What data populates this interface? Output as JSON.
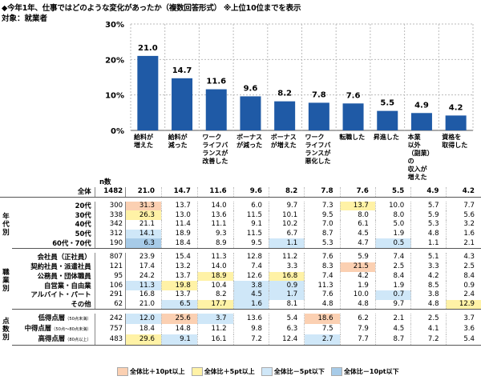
{
  "header": {
    "title": "◆今年1年、仕事ではどのような変化があったか（複数回答形式） ※上位10位までを表示",
    "subject": "対象：就業者"
  },
  "chart_data": {
    "type": "bar",
    "title": "今年1年、仕事ではどのような変化があったか（複数回答形式）",
    "ylabel": "%",
    "ylim": [
      0,
      30
    ],
    "yticks": [
      "0%",
      "10%",
      "20%",
      "30%"
    ],
    "categories": [
      "給料が\n増えた",
      "給料が\n減った",
      "ワーク\nライフバ\nランスが\n改善した",
      "ボーナス\nが減った",
      "ボーナス\nが増えた",
      "ワーク\nライフバ\nランスが\n悪化した",
      "転職した",
      "昇進した",
      "本業\n以外\n（副業）の\n収入が\n増えた",
      "資格を\n取得した"
    ],
    "values": [
      21.0,
      14.7,
      11.6,
      9.6,
      8.2,
      7.8,
      7.6,
      5.5,
      4.9,
      4.2
    ],
    "bar_color": "#1f5aa6"
  },
  "table": {
    "n_header": "n数",
    "rows": [
      {
        "group": "",
        "label": "全体",
        "n": "1482",
        "values": [
          "21.0",
          "14.7",
          "11.6",
          "9.6",
          "8.2",
          "7.8",
          "7.6",
          "5.5",
          "4.9",
          "4.2"
        ],
        "hl": [
          0,
          0,
          0,
          0,
          0,
          0,
          0,
          0,
          0,
          0
        ]
      },
      {
        "group": "年代別",
        "label": "20代",
        "n": "300",
        "values": [
          "31.3",
          "13.7",
          "14.0",
          "6.0",
          "9.7",
          "7.3",
          "13.7",
          "10.0",
          "5.7",
          "7.7"
        ],
        "hl": [
          1,
          0,
          0,
          0,
          0,
          0,
          2,
          0,
          0,
          0
        ]
      },
      {
        "group": "",
        "label": "30代",
        "n": "338",
        "values": [
          "26.3",
          "13.0",
          "13.6",
          "11.5",
          "10.1",
          "9.5",
          "8.0",
          "8.0",
          "5.9",
          "5.6"
        ],
        "hl": [
          2,
          0,
          0,
          0,
          0,
          0,
          0,
          0,
          0,
          0
        ]
      },
      {
        "group": "",
        "label": "40代",
        "n": "342",
        "values": [
          "21.1",
          "11.4",
          "11.1",
          "9.1",
          "10.2",
          "7.0",
          "6.1",
          "5.0",
          "5.3",
          "3.2"
        ],
        "hl": [
          0,
          0,
          0,
          0,
          0,
          0,
          0,
          0,
          0,
          0
        ]
      },
      {
        "group": "",
        "label": "50代",
        "n": "312",
        "values": [
          "14.1",
          "18.9",
          "9.3",
          "11.5",
          "6.7",
          "8.7",
          "4.5",
          "1.9",
          "4.8",
          "1.6"
        ],
        "hl": [
          3,
          0,
          0,
          0,
          0,
          0,
          0,
          0,
          0,
          0
        ]
      },
      {
        "group": "",
        "label": "60代・70代",
        "n": "190",
        "values": [
          "6.3",
          "18.4",
          "8.9",
          "9.5",
          "1.1",
          "5.3",
          "4.7",
          "0.5",
          "1.1",
          "2.1"
        ],
        "hl": [
          4,
          0,
          0,
          0,
          3,
          0,
          0,
          3,
          0,
          0
        ]
      },
      {
        "group": "職業別",
        "label": "会社員（正社員）",
        "n": "807",
        "values": [
          "23.9",
          "15.4",
          "11.3",
          "12.8",
          "11.2",
          "7.6",
          "5.9",
          "7.4",
          "5.1",
          "4.3"
        ],
        "hl": [
          0,
          0,
          0,
          0,
          0,
          0,
          0,
          0,
          0,
          0
        ]
      },
      {
        "group": "",
        "label": "契約社員・派遣社員",
        "n": "121",
        "values": [
          "17.4",
          "13.2",
          "14.0",
          "7.4",
          "3.3",
          "8.3",
          "21.5",
          "2.5",
          "3.3",
          "2.5"
        ],
        "hl": [
          0,
          0,
          0,
          0,
          0,
          0,
          1,
          0,
          0,
          0
        ]
      },
      {
        "group": "",
        "label": "公務員・団体職員",
        "n": "95",
        "values": [
          "24.2",
          "13.7",
          "18.9",
          "12.6",
          "16.8",
          "7.4",
          "4.2",
          "8.4",
          "4.2",
          "8.4"
        ],
        "hl": [
          0,
          0,
          2,
          0,
          2,
          0,
          0,
          0,
          0,
          0
        ]
      },
      {
        "group": "",
        "label": "自営業・自由業",
        "n": "106",
        "values": [
          "11.3",
          "19.8",
          "10.4",
          "3.8",
          "0.9",
          "11.3",
          "1.9",
          "1.9",
          "8.5",
          "0.9"
        ],
        "hl": [
          3,
          2,
          0,
          3,
          3,
          0,
          0,
          0,
          0,
          0
        ]
      },
      {
        "group": "",
        "label": "アルバイト・パート",
        "n": "291",
        "values": [
          "16.8",
          "13.7",
          "8.2",
          "4.5",
          "1.7",
          "7.6",
          "10.0",
          "0.7",
          "3.8",
          "2.4"
        ],
        "hl": [
          0,
          0,
          0,
          3,
          3,
          0,
          0,
          3,
          0,
          0
        ]
      },
      {
        "group": "",
        "label": "その他",
        "n": "62",
        "values": [
          "21.0",
          "6.5",
          "17.7",
          "1.6",
          "8.1",
          "4.8",
          "4.8",
          "9.7",
          "4.8",
          "12.9"
        ],
        "hl": [
          0,
          3,
          2,
          3,
          0,
          0,
          0,
          0,
          0,
          2
        ]
      },
      {
        "group": "点数別",
        "label": "低得点層",
        "sub": "（50点未満）",
        "n": "242",
        "values": [
          "12.0",
          "25.6",
          "3.7",
          "13.6",
          "5.4",
          "18.6",
          "6.2",
          "2.1",
          "2.5",
          "3.7"
        ],
        "hl": [
          3,
          1,
          3,
          0,
          0,
          1,
          0,
          0,
          0,
          0
        ]
      },
      {
        "group": "",
        "label": "中得点層",
        "sub": "（50点～80点未満）",
        "n": "757",
        "values": [
          "18.4",
          "14.8",
          "11.2",
          "9.8",
          "6.3",
          "7.5",
          "7.9",
          "4.5",
          "4.1",
          "3.6"
        ],
        "hl": [
          0,
          0,
          0,
          0,
          0,
          0,
          0,
          0,
          0,
          0
        ]
      },
      {
        "group": "",
        "label": "高得点層",
        "sub": "（80点以上）",
        "n": "483",
        "values": [
          "29.6",
          "9.1",
          "16.1",
          "7.2",
          "12.4",
          "2.7",
          "7.7",
          "8.7",
          "7.2",
          "5.4"
        ],
        "hl": [
          2,
          3,
          0,
          0,
          0,
          3,
          0,
          0,
          0,
          0
        ]
      }
    ]
  },
  "legend": [
    {
      "label": "全体比＋10pt以上",
      "color": "#fbd0b2"
    },
    {
      "label": "全体比＋5pt以上",
      "color": "#fff2a6"
    },
    {
      "label": "全体比－5pt以下",
      "color": "#cfe7f8"
    },
    {
      "label": "全体比－10pt以下",
      "color": "#a7cbe8"
    }
  ]
}
